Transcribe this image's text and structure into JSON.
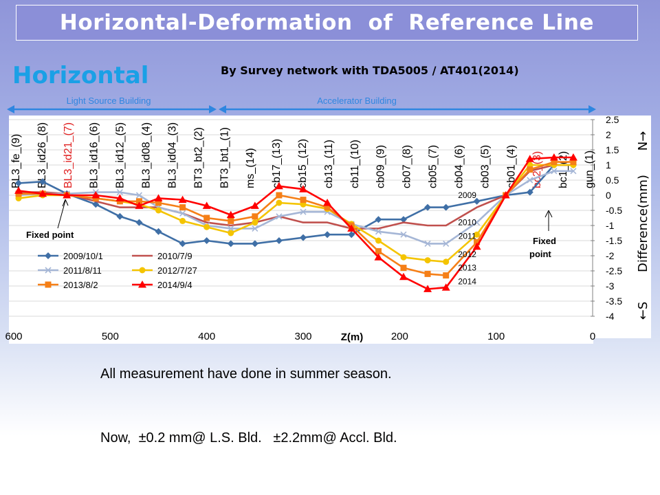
{
  "slide": {
    "title": "Horizontal-Deformation  of  Reference Line",
    "subtitle": "Horizontal",
    "survey_note": "By Survey network with TDA5005 / AT401(2014)",
    "region_left": "Light Source Building",
    "region_right": "Accelerator Building",
    "fixed_point_left": "Fixed point",
    "fixed_point_right": [
      "Fixed",
      "point"
    ],
    "note_line1": "All measurement have done in summer season.",
    "note_line2": "Now,  ±0.2 mm@ L.S. Bld.   ±2.2mm@ Accl. Bld."
  },
  "colors": {
    "title_bg": "#8b8fd8",
    "subtitle": "#1aa0e6",
    "arrow": "#2f86e0",
    "point_label_highlight": "#e02020"
  },
  "chart_data": {
    "type": "line",
    "xlabel": "Z(m)",
    "ylabel": "Difference(mm)",
    "y_axis_north": "N→",
    "y_axis_south": "←S",
    "xlim": [
      600,
      0
    ],
    "ylim": [
      -4,
      2.5
    ],
    "x_ticks": [
      600,
      500,
      400,
      300,
      200,
      100,
      0
    ],
    "y_ticks": [
      2.5,
      2,
      1.5,
      1,
      0.5,
      0,
      -0.5,
      -1,
      -1.5,
      -2,
      -2.5,
      -3,
      -3.5,
      -4
    ],
    "legend_placement": "bottom-left",
    "point_labels": [
      {
        "name": "BL3_fe_(9)",
        "highlight": false
      },
      {
        "name": "BL3_id26_(8)",
        "highlight": false
      },
      {
        "name": "BL3_id21_(7)",
        "highlight": true
      },
      {
        "name": "BL3_id16_(6)",
        "highlight": false
      },
      {
        "name": "BL3_id12_(5)",
        "highlight": false
      },
      {
        "name": "BL3_id08_(4)",
        "highlight": false
      },
      {
        "name": "BL3_id04_(3)",
        "highlight": false
      },
      {
        "name": "BT3_bt2_(2)",
        "highlight": false
      },
      {
        "name": "BT3_bt1_(1)",
        "highlight": false
      },
      {
        "name": "ms_(14)",
        "highlight": false
      },
      {
        "name": "cb17_(13)",
        "highlight": false
      },
      {
        "name": "cb15_(12)",
        "highlight": false
      },
      {
        "name": "cb13_(11)",
        "highlight": false
      },
      {
        "name": "cb11_(10)",
        "highlight": false
      },
      {
        "name": "cb09_(9)",
        "highlight": false
      },
      {
        "name": "cb07_(8)",
        "highlight": false
      },
      {
        "name": "cb05_(7)",
        "highlight": false
      },
      {
        "name": "cb04_(6)",
        "highlight": false
      },
      {
        "name": "cb03_(5)",
        "highlight": false
      },
      {
        "name": "cb01_(4)",
        "highlight": false
      },
      {
        "name": "bc2_(3)",
        "highlight": true
      },
      {
        "name": "bc1_(2)",
        "highlight": false
      },
      {
        "name": "gun_(1)",
        "highlight": false
      }
    ],
    "x": [
      595,
      570,
      545,
      515,
      490,
      470,
      450,
      425,
      400,
      375,
      350,
      325,
      300,
      275,
      250,
      222,
      196,
      171,
      152,
      120,
      90,
      65,
      40,
      20
    ],
    "series": [
      {
        "name": "2009/10/1",
        "color": "#3f6fa6",
        "marker": "diamond",
        "values": [
          0.4,
          0.45,
          0.05,
          -0.3,
          -0.7,
          -0.9,
          -1.2,
          -1.6,
          -1.5,
          -1.6,
          -1.6,
          -1.5,
          -1.4,
          -1.3,
          -1.3,
          -0.8,
          -0.8,
          -0.4,
          -0.4,
          -0.2,
          0.0,
          0.1,
          1.0,
          1.0
        ]
      },
      {
        "name": "2010/7/9",
        "color": "#c0504d",
        "marker": "none",
        "values": [
          0.1,
          0.1,
          0.05,
          -0.2,
          -0.4,
          -0.4,
          -0.4,
          -0.6,
          -0.9,
          -1.0,
          -0.9,
          -0.7,
          -0.9,
          -0.9,
          -1.1,
          -1.1,
          -0.9,
          -1.0,
          -1.0,
          -0.4,
          0.0,
          0.8,
          1.0,
          1.0
        ]
      },
      {
        "name": "2011/8/11",
        "color": "#a5b6d6",
        "marker": "x",
        "values": [
          0.0,
          0.05,
          0.05,
          0.1,
          0.1,
          0.0,
          -0.4,
          -0.6,
          -1.0,
          -1.1,
          -1.1,
          -0.7,
          -0.55,
          -0.55,
          -0.95,
          -1.2,
          -1.3,
          -1.6,
          -1.6,
          -0.9,
          0.0,
          0.5,
          0.8,
          0.8
        ]
      },
      {
        "name": "2012/7/27",
        "color": "#f4c400",
        "marker": "circle",
        "values": [
          -0.1,
          0.0,
          0.0,
          -0.1,
          -0.2,
          -0.3,
          -0.5,
          -0.85,
          -1.05,
          -1.25,
          -0.9,
          -0.25,
          -0.3,
          -0.45,
          -0.95,
          -1.5,
          -2.05,
          -2.15,
          -2.2,
          -1.3,
          0.0,
          1.0,
          1.0,
          1.0
        ]
      },
      {
        "name": "2013/8/2",
        "color": "#f57f17",
        "marker": "square",
        "values": [
          0.05,
          0.05,
          0.0,
          -0.1,
          -0.2,
          -0.2,
          -0.25,
          -0.4,
          -0.75,
          -0.85,
          -0.7,
          0.0,
          -0.15,
          -0.4,
          -1.0,
          -1.85,
          -2.4,
          -2.6,
          -2.65,
          -1.55,
          0.0,
          0.85,
          1.1,
          1.1
        ]
      },
      {
        "name": "2014/9/4",
        "color": "#ff0000",
        "marker": "triangle",
        "values": [
          0.15,
          0.05,
          0.0,
          0.0,
          -0.1,
          -0.35,
          -0.1,
          -0.15,
          -0.35,
          -0.65,
          -0.35,
          0.3,
          0.2,
          -0.25,
          -1.1,
          -2.05,
          -2.7,
          -3.1,
          -3.05,
          -1.7,
          0.0,
          1.2,
          1.25,
          1.25
        ]
      }
    ],
    "year_annotations": [
      {
        "text": "2009",
        "x": 120,
        "y": 0.0
      },
      {
        "text": "2010",
        "x": 120,
        "y": -0.9
      },
      {
        "text": "2011",
        "x": 120,
        "y": -1.35
      },
      {
        "text": "2012",
        "x": 120,
        "y": -1.95
      },
      {
        "text": "2013",
        "x": 120,
        "y": -2.4
      },
      {
        "text": "2014",
        "x": 120,
        "y": -2.85
      }
    ]
  }
}
